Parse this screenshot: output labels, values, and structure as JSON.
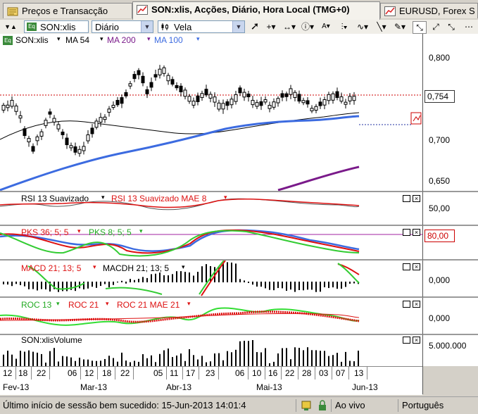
{
  "tabs": [
    {
      "label": "Preços e Transacção"
    },
    {
      "label": "SON:xlis, Acções, Diário, Hora Local (TMG+0)"
    },
    {
      "label": "EURUSD, Forex S"
    }
  ],
  "toolbar": {
    "symbol": "SON:xlis",
    "period": "Diário",
    "chart_style": "Vela"
  },
  "price_pane": {
    "symbol": "SON:xlis",
    "ma54": "MA 54",
    "ma200": "MA 200",
    "ma100": "MA 100",
    "y_ticks": [
      "0,800",
      "0,750",
      "0,700",
      "0,650"
    ],
    "last_price": "0,754",
    "colors": {
      "ma54": "#000000",
      "ma200": "#7a1a8a",
      "ma100": "#3c6be0",
      "last_line": "#cc0000"
    }
  },
  "rsi_pane": {
    "label1": "RSI 13 Suavizado",
    "label2": "RSI 13 Suavizado MAE 8",
    "tick": "50,00"
  },
  "pks_pane": {
    "label1": "PKS 36; 5; 5",
    "label2": "PKS 8; 5; 5",
    "tick": "80,00"
  },
  "macd_pane": {
    "label1": "MACD 21; 13; 5",
    "label2": "MACDH 21; 13; 5",
    "tick": "0,000"
  },
  "roc_pane": {
    "label1": "ROC 13",
    "label2": "ROC 21",
    "label3": "ROC 21 MAE 21",
    "tick": "0,000"
  },
  "volume_pane": {
    "label": "SON:xlisVolume",
    "tick": "5.000.000"
  },
  "date_axis": {
    "days": [
      "12",
      "18",
      "22",
      "06",
      "12",
      "18",
      "22",
      "05",
      "11",
      "17",
      "23",
      "06",
      "10",
      "16",
      "22",
      "28",
      "03",
      "07",
      "13"
    ],
    "months": [
      "Fev-13",
      "Mar-13",
      "Abr-13",
      "Mai-13",
      "Jun-13"
    ]
  },
  "status": {
    "last_login": "Último início de sessão bem sucedido: 15-Jun-2013 14:01:4",
    "live": "Ao vivo",
    "language": "Português"
  }
}
